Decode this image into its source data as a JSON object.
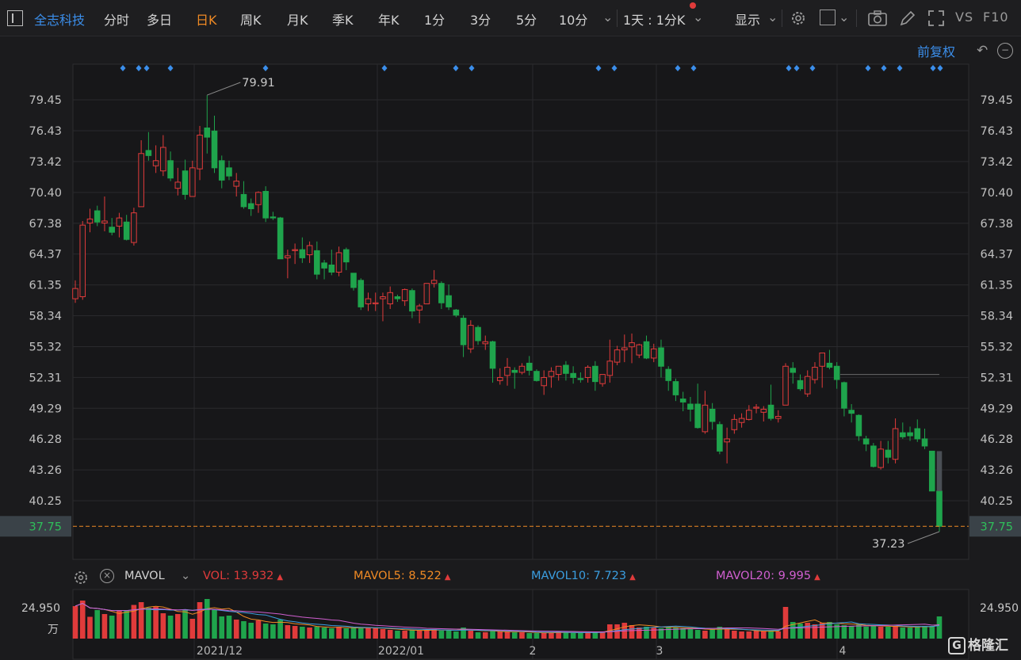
{
  "toolbar": {
    "stock_name": "全志科技",
    "periods": [
      "分时",
      "多日",
      "日K",
      "周K",
      "月K",
      "季K",
      "年K",
      "1分",
      "3分",
      "5分",
      "10分"
    ],
    "active_period": "日K",
    "cycle_select": "1天 : 1分K",
    "display_label": "显示",
    "vs_label": "VS",
    "f10_label": "F10"
  },
  "chart": {
    "adjust_label": "前复权",
    "y_ticks": [
      "79.45",
      "76.43",
      "73.42",
      "70.40",
      "67.38",
      "64.37",
      "61.35",
      "58.34",
      "55.32",
      "52.31",
      "49.29",
      "46.28",
      "43.26",
      "40.25"
    ],
    "current_price": "37.75",
    "max_label": "79.91",
    "min_label": "37.23",
    "x_labels": [
      "2021/12",
      "2022/01",
      "2",
      "3",
      "4"
    ],
    "colors": {
      "up": "#e03b3b",
      "down": "#1fa44c",
      "accent": "#3b8eea",
      "price_line": "#f08a24"
    }
  },
  "volume": {
    "indicator": "MAVOL",
    "vol_label": "VOL:",
    "vol_value": "13.932",
    "mavol5_label": "MAVOL5:",
    "mavol5_value": "8.522",
    "mavol10_label": "MAVOL10:",
    "mavol10_value": "7.723",
    "mavol20_label": "MAVOL20:",
    "mavol20_value": "9.995",
    "max_value": "24.950",
    "unit": "万",
    "colors": {
      "vol": "#e03b3b",
      "mavol5": "#f08a24",
      "mavol10": "#3b9ee0",
      "mavol20": "#d05fd0"
    }
  },
  "watermark": "格隆汇",
  "chart_data": {
    "type": "candlestick",
    "price_ohlc": [
      [
        60.0,
        61.8,
        59.6,
        61.0
      ],
      [
        60.2,
        67.6,
        59.9,
        67.2
      ],
      [
        67.4,
        68.8,
        66.5,
        67.8
      ],
      [
        68.6,
        69.1,
        67.1,
        67.5
      ],
      [
        67.4,
        70.0,
        66.6,
        67.6
      ],
      [
        67.0,
        67.9,
        66.2,
        66.5
      ],
      [
        67.1,
        68.4,
        66.0,
        67.9
      ],
      [
        67.5,
        68.2,
        65.7,
        65.8
      ],
      [
        65.5,
        68.9,
        65.2,
        68.4
      ],
      [
        69.0,
        75.5,
        69.0,
        74.2
      ],
      [
        74.5,
        76.3,
        73.5,
        74.0
      ],
      [
        73.0,
        75.0,
        72.3,
        73.5
      ],
      [
        72.5,
        76.0,
        72.0,
        74.8
      ],
      [
        73.5,
        74.4,
        71.5,
        71.8
      ],
      [
        70.8,
        72.8,
        70.1,
        71.4
      ],
      [
        72.5,
        73.6,
        69.7,
        70.2
      ],
      [
        70.0,
        73.5,
        70.0,
        72.8
      ],
      [
        72.7,
        76.9,
        71.6,
        76.0
      ],
      [
        76.7,
        79.9,
        74.2,
        75.8
      ],
      [
        76.4,
        77.9,
        72.3,
        72.8
      ],
      [
        73.5,
        74.0,
        70.8,
        71.6
      ],
      [
        72.8,
        73.5,
        71.6,
        72.0
      ],
      [
        71.0,
        72.3,
        70.0,
        71.5
      ],
      [
        70.2,
        71.5,
        68.8,
        69.0
      ],
      [
        69.3,
        69.8,
        68.1,
        68.8
      ],
      [
        69.2,
        70.5,
        68.4,
        70.4
      ],
      [
        70.5,
        71.0,
        67.5,
        67.9
      ],
      [
        68.0,
        68.5,
        67.7,
        67.9
      ],
      [
        67.9,
        68.0,
        63.9,
        63.9
      ],
      [
        64.0,
        64.8,
        62.0,
        64.2
      ],
      [
        64.8,
        65.4,
        63.4,
        64.8
      ],
      [
        64.8,
        66.0,
        63.5,
        64.0
      ],
      [
        64.3,
        65.6,
        63.5,
        65.2
      ],
      [
        64.7,
        65.6,
        61.9,
        62.4
      ],
      [
        63.5,
        63.8,
        61.9,
        63.0
      ],
      [
        63.3,
        64.8,
        62.3,
        62.6
      ],
      [
        62.6,
        65.1,
        62.2,
        64.5
      ],
      [
        64.8,
        65.0,
        62.8,
        63.6
      ],
      [
        62.5,
        62.5,
        60.8,
        61.1
      ],
      [
        61.8,
        62.0,
        58.9,
        59.2
      ],
      [
        59.5,
        60.6,
        58.8,
        60.0
      ],
      [
        59.6,
        60.6,
        58.8,
        59.6
      ],
      [
        60.0,
        60.6,
        57.8,
        60.2
      ],
      [
        59.5,
        61.2,
        59.0,
        60.6
      ],
      [
        60.2,
        60.4,
        59.7,
        60.0
      ],
      [
        59.8,
        61.0,
        59.3,
        60.9
      ],
      [
        60.8,
        61.0,
        58.1,
        58.8
      ],
      [
        58.9,
        59.5,
        57.6,
        59.3
      ],
      [
        59.5,
        61.5,
        59.5,
        61.5
      ],
      [
        61.5,
        62.8,
        61.1,
        61.8
      ],
      [
        61.5,
        61.7,
        59.0,
        59.6
      ],
      [
        60.3,
        61.4,
        58.9,
        59.2
      ],
      [
        58.9,
        59.0,
        58.2,
        58.4
      ],
      [
        58.1,
        58.4,
        54.3,
        55.5
      ],
      [
        55.1,
        57.9,
        54.7,
        57.4
      ],
      [
        57.2,
        57.4,
        55.5,
        55.9
      ],
      [
        55.6,
        56.4,
        55.0,
        55.8
      ],
      [
        55.8,
        55.9,
        51.8,
        53.2
      ],
      [
        52.0,
        53.2,
        51.6,
        52.3
      ],
      [
        52.5,
        54.2,
        51.5,
        53.3
      ],
      [
        53.0,
        53.3,
        51.2,
        52.8
      ],
      [
        52.8,
        53.7,
        52.6,
        53.4
      ],
      [
        53.7,
        54.4,
        52.5,
        53.0
      ],
      [
        52.9,
        53.1,
        51.9,
        52.0
      ],
      [
        51.5,
        53.0,
        50.6,
        52.3
      ],
      [
        52.4,
        53.3,
        51.3,
        52.9
      ],
      [
        52.6,
        53.4,
        52.0,
        53.4
      ],
      [
        53.5,
        53.9,
        52.0,
        52.7
      ],
      [
        52.7,
        53.4,
        51.7,
        52.3
      ],
      [
        52.2,
        52.8,
        51.8,
        52.1
      ],
      [
        52.3,
        53.5,
        51.8,
        53.3
      ],
      [
        53.4,
        53.9,
        51.0,
        51.9
      ],
      [
        51.7,
        52.6,
        51.4,
        52.6
      ],
      [
        52.5,
        56.0,
        51.8,
        53.9
      ],
      [
        53.8,
        55.4,
        53.5,
        55.0
      ],
      [
        55.0,
        56.5,
        53.8,
        55.2
      ],
      [
        55.3,
        56.6,
        53.7,
        55.7
      ],
      [
        54.5,
        55.6,
        54.2,
        55.5
      ],
      [
        55.8,
        56.4,
        54.1,
        54.2
      ],
      [
        54.2,
        55.6,
        53.8,
        55.1
      ],
      [
        55.2,
        56.0,
        52.3,
        53.4
      ],
      [
        53.1,
        53.4,
        51.0,
        52.0
      ],
      [
        51.9,
        52.2,
        50.0,
        50.6
      ],
      [
        50.2,
        50.9,
        49.0,
        49.9
      ],
      [
        49.7,
        50.4,
        48.0,
        49.2
      ],
      [
        49.7,
        51.7,
        47.3,
        47.4
      ],
      [
        47.0,
        51.0,
        46.8,
        49.6
      ],
      [
        49.2,
        49.8,
        47.2,
        48.0
      ],
      [
        47.7,
        48.0,
        44.8,
        45.1
      ],
      [
        46.0,
        47.4,
        43.9,
        46.3
      ],
      [
        47.2,
        48.7,
        46.8,
        48.2
      ],
      [
        47.9,
        48.8,
        47.4,
        48.3
      ],
      [
        48.2,
        49.6,
        48.1,
        49.1
      ],
      [
        49.3,
        49.7,
        48.8,
        49.4
      ],
      [
        48.9,
        49.5,
        48.0,
        49.2
      ],
      [
        49.6,
        51.6,
        48.1,
        48.3
      ],
      [
        48.3,
        49.1,
        47.9,
        48.5
      ],
      [
        49.6,
        53.7,
        50.0,
        53.4
      ],
      [
        53.2,
        53.8,
        51.7,
        52.8
      ],
      [
        52.0,
        52.6,
        51.0,
        51.2
      ],
      [
        50.7,
        53.0,
        50.4,
        52.4
      ],
      [
        52.1,
        53.8,
        51.7,
        53.3
      ],
      [
        53.4,
        54.6,
        51.3,
        54.7
      ],
      [
        53.7,
        55.0,
        53.1,
        53.3
      ],
      [
        53.4,
        53.8,
        51.2,
        52.1
      ],
      [
        51.8,
        51.9,
        48.5,
        49.3
      ],
      [
        49.1,
        49.7,
        47.9,
        48.8
      ],
      [
        48.6,
        48.7,
        46.1,
        46.6
      ],
      [
        46.3,
        46.6,
        45.1,
        45.8
      ],
      [
        45.6,
        45.9,
        43.5,
        43.6
      ],
      [
        43.5,
        46.1,
        43.3,
        45.3
      ],
      [
        45.2,
        46.1,
        43.9,
        44.5
      ],
      [
        44.3,
        48.3,
        43.9,
        47.3
      ],
      [
        46.9,
        47.9,
        46.3,
        46.5
      ],
      [
        46.9,
        47.5,
        46.1,
        46.6
      ],
      [
        47.3,
        48.2,
        46.0,
        46.3
      ],
      [
        46.3,
        47.3,
        45.3,
        45.6
      ],
      [
        45.1,
        45.1,
        41.2,
        41.2
      ],
      [
        41.2,
        41.2,
        37.23,
        37.75
      ]
    ],
    "volume_ratio": [
      0.82,
      0.96,
      0.55,
      0.72,
      0.62,
      0.58,
      0.7,
      0.72,
      0.85,
      0.92,
      0.78,
      0.8,
      0.64,
      0.58,
      0.62,
      0.74,
      0.5,
      0.92,
      1.0,
      0.74,
      0.56,
      0.58,
      0.48,
      0.44,
      0.4,
      0.46,
      0.38,
      0.36,
      0.48,
      0.34,
      0.32,
      0.3,
      0.28,
      0.3,
      0.28,
      0.26,
      0.3,
      0.26,
      0.28,
      0.26,
      0.28,
      0.26,
      0.24,
      0.22,
      0.2,
      0.2,
      0.22,
      0.2,
      0.22,
      0.24,
      0.2,
      0.22,
      0.18,
      0.28,
      0.2,
      0.16,
      0.16,
      0.2,
      0.18,
      0.18,
      0.16,
      0.16,
      0.14,
      0.14,
      0.14,
      0.16,
      0.18,
      0.16,
      0.14,
      0.14,
      0.16,
      0.18,
      0.18,
      0.36,
      0.36,
      0.4,
      0.34,
      0.28,
      0.3,
      0.28,
      0.26,
      0.3,
      0.28,
      0.26,
      0.24,
      0.22,
      0.2,
      0.24,
      0.3,
      0.24,
      0.2,
      0.18,
      0.18,
      0.2,
      0.18,
      0.2,
      0.18,
      0.8,
      0.42,
      0.38,
      0.4,
      0.36,
      0.4,
      0.42,
      0.36,
      0.34,
      0.32,
      0.36,
      0.3,
      0.32,
      0.3,
      0.3,
      0.32,
      0.28,
      0.28,
      0.3,
      0.32,
      0.32,
      0.56
    ],
    "y_range": [
      37.0,
      80.0
    ]
  }
}
